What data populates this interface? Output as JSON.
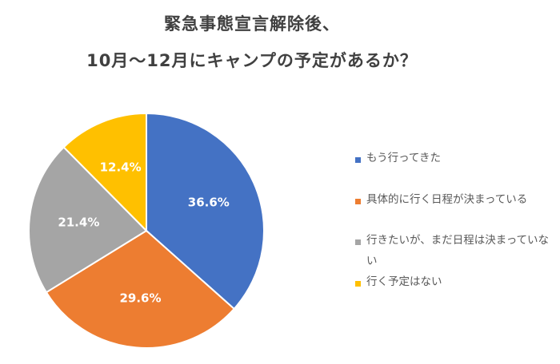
{
  "chart_data": {
    "type": "pie",
    "title": [
      "緊急事態宣言解除後、",
      "10月〜12月にキャンプの予定があるか？"
    ],
    "categories": [
      "もう行ってきた",
      "具体的に行く日程が決まっている",
      "行きたいが、まだ日程は決まっていない",
      "行く予定はない"
    ],
    "values": [
      36.6,
      29.6,
      21.4,
      12.4
    ],
    "labels": [
      "36.6%",
      "29.6%",
      "21.4%",
      "12.4%"
    ],
    "colors": [
      "#4472C4",
      "#ED7D31",
      "#A5A5A5",
      "#FFC000"
    ],
    "legend_position": "right"
  }
}
